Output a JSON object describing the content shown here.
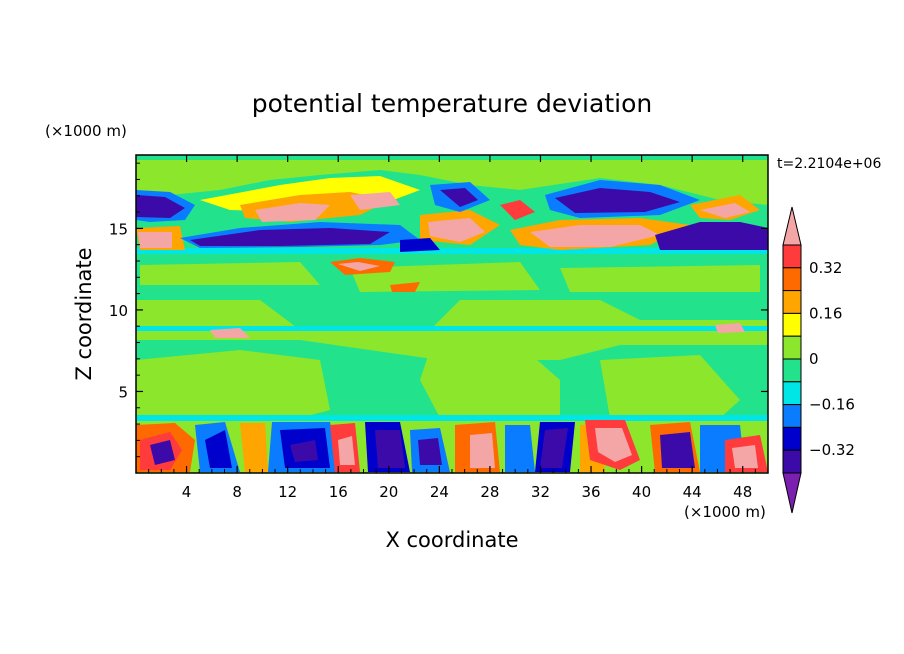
{
  "chart_data": {
    "type": "heatmap",
    "title": "potential temperature deviation",
    "xlabel": "X coordinate",
    "ylabel": "Z coordinate",
    "x_unit": "(×1000 m)",
    "y_unit": "(×1000 m)",
    "time_label": "t=2.2104e+06",
    "xlim": [
      0,
      50
    ],
    "ylim": [
      0,
      19.5
    ],
    "x_ticks": [
      4,
      8,
      12,
      16,
      20,
      24,
      28,
      32,
      36,
      40,
      44,
      48
    ],
    "y_ticks": [
      5,
      10,
      15
    ],
    "colorbar": {
      "labels": [
        "0.32",
        "0.16",
        "0",
        "-0.16",
        "-0.32"
      ],
      "levels": [
        {
          "range": "> 0.40",
          "color": "#f4a6a6"
        },
        {
          "range": "0.32 – 0.40",
          "color": "#ff3b3b"
        },
        {
          "range": "0.24 – 0.32",
          "color": "#ff6a00"
        },
        {
          "range": "0.16 – 0.24",
          "color": "#ffa500"
        },
        {
          "range": "0.08 – 0.16",
          "color": "#ffff00"
        },
        {
          "range": "0 – 0.08",
          "color": "#8ce62c"
        },
        {
          "range": "-0.08 – 0",
          "color": "#23e28c"
        },
        {
          "range": "-0.16 – -0.08",
          "color": "#00e6e6"
        },
        {
          "range": "-0.24 – -0.16",
          "color": "#0a7cff"
        },
        {
          "range": "-0.32 – -0.24",
          "color": "#0000cc"
        },
        {
          "range": "-0.40 – -0.32",
          "color": "#3c0aa8"
        },
        {
          "range": "< -0.40",
          "color": "#7a1fb0"
        }
      ]
    },
    "bands": [
      {
        "region": "z 0–3.5",
        "description": "strong alternating anomalies, ±0.4"
      },
      {
        "region": "z 3.5–14",
        "description": "near zero (green)"
      },
      {
        "region": "z 14–19.5",
        "description": "alternating warm/cold layers, ±0.4"
      }
    ]
  }
}
